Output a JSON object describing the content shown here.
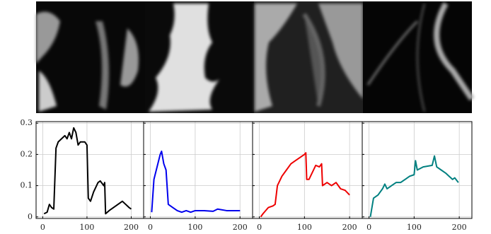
{
  "chart_data": [
    {
      "type": "line",
      "xlim": [
        -15,
        228
      ],
      "ylim": [
        -0.005,
        0.305
      ],
      "xticks": [
        0,
        100,
        200
      ],
      "yticks": [
        0,
        0.1,
        0.2,
        0.3
      ],
      "grid": true,
      "x": [
        3,
        10,
        15,
        20,
        25,
        30,
        35,
        50,
        55,
        60,
        65,
        70,
        75,
        80,
        85,
        95,
        100,
        103,
        108,
        115,
        125,
        130,
        138,
        140,
        142,
        150,
        165,
        180,
        195,
        200
      ],
      "series": [
        {
          "color": "#000000",
          "values": [
            0.01,
            0.015,
            0.04,
            0.03,
            0.025,
            0.22,
            0.24,
            0.26,
            0.25,
            0.27,
            0.25,
            0.285,
            0.27,
            0.23,
            0.24,
            0.24,
            0.23,
            0.06,
            0.05,
            0.08,
            0.11,
            0.115,
            0.1,
            0.11,
            0.01,
            0.02,
            0.035,
            0.05,
            0.03,
            0.025
          ]
        }
      ]
    },
    {
      "type": "line",
      "xlim": [
        -15,
        228
      ],
      "ylim": [
        -0.005,
        0.305
      ],
      "xticks": [
        0,
        100,
        200
      ],
      "yticks": [
        0,
        0.1,
        0.2,
        0.3
      ],
      "grid": true,
      "x": [
        3,
        8,
        15,
        22,
        25,
        30,
        35,
        40,
        45,
        50,
        60,
        70,
        80,
        90,
        100,
        120,
        140,
        150,
        170,
        200
      ],
      "series": [
        {
          "color": "#0000ee",
          "values": [
            0.015,
            0.12,
            0.16,
            0.2,
            0.21,
            0.17,
            0.15,
            0.04,
            0.035,
            0.03,
            0.02,
            0.015,
            0.02,
            0.015,
            0.02,
            0.02,
            0.018,
            0.025,
            0.02,
            0.02
          ]
        }
      ]
    },
    {
      "type": "line",
      "xlim": [
        -15,
        228
      ],
      "ylim": [
        -0.005,
        0.305
      ],
      "xticks": [
        0,
        100,
        200
      ],
      "yticks": [
        0,
        0.1,
        0.2,
        0.3
      ],
      "grid": true,
      "x": [
        3,
        8,
        20,
        30,
        35,
        40,
        50,
        60,
        70,
        80,
        90,
        100,
        103,
        105,
        110,
        120,
        125,
        133,
        138,
        140,
        150,
        160,
        170,
        180,
        190,
        200
      ],
      "series": [
        {
          "color": "#ee0000",
          "values": [
            0.0,
            0.01,
            0.03,
            0.035,
            0.04,
            0.1,
            0.13,
            0.15,
            0.17,
            0.18,
            0.19,
            0.2,
            0.205,
            0.12,
            0.12,
            0.15,
            0.165,
            0.16,
            0.17,
            0.1,
            0.11,
            0.1,
            0.11,
            0.09,
            0.085,
            0.07
          ]
        }
      ]
    },
    {
      "type": "line",
      "xlim": [
        -15,
        228
      ],
      "ylim": [
        -0.005,
        0.305
      ],
      "xticks": [
        0,
        100,
        200
      ],
      "yticks": [
        0,
        0.1,
        0.2,
        0.3
      ],
      "grid": true,
      "x": [
        3,
        10,
        20,
        30,
        35,
        40,
        50,
        60,
        70,
        80,
        90,
        100,
        103,
        107,
        120,
        140,
        145,
        150,
        160,
        170,
        185,
        190,
        198
      ],
      "series": [
        {
          "color": "#008080",
          "values": [
            0.0,
            0.06,
            0.07,
            0.09,
            0.105,
            0.09,
            0.1,
            0.11,
            0.11,
            0.12,
            0.13,
            0.135,
            0.18,
            0.15,
            0.16,
            0.165,
            0.195,
            0.16,
            0.15,
            0.14,
            0.12,
            0.125,
            0.11
          ]
        }
      ]
    }
  ]
}
